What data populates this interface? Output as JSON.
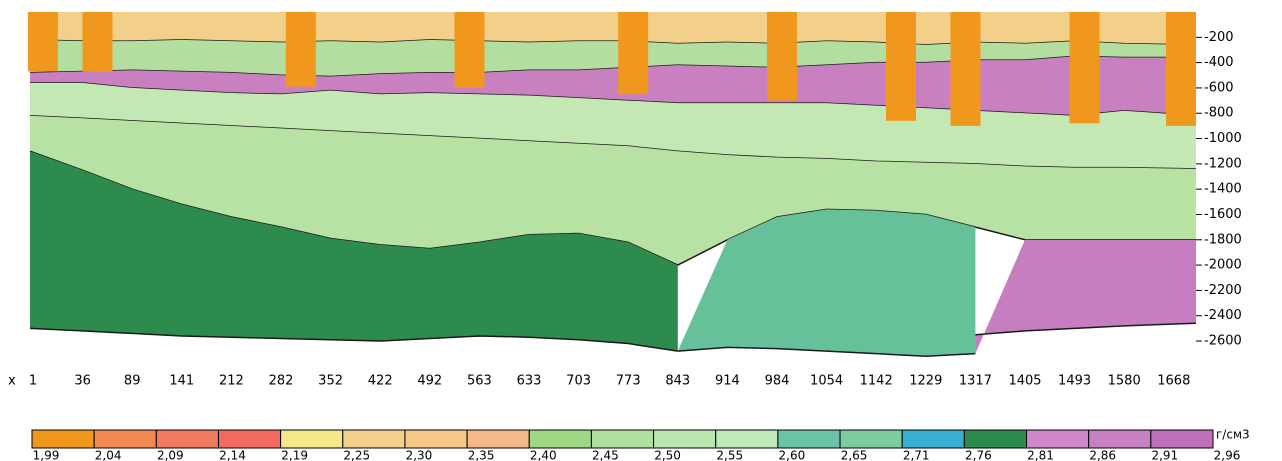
{
  "chart_data": {
    "type": "section",
    "x_label": "x",
    "categories": [
      "1",
      "36",
      "89",
      "141",
      "212",
      "282",
      "352",
      "422",
      "492",
      "563",
      "633",
      "703",
      "773",
      "843",
      "914",
      "984",
      "1054",
      "1142",
      "1229",
      "1317",
      "1405",
      "1493",
      "1580",
      "1668"
    ],
    "ylim": [
      0,
      -2750
    ],
    "yticks": [
      -200,
      -400,
      -600,
      -800,
      -1000,
      -1200,
      -1400,
      -1600,
      -1800,
      -2000,
      -2200,
      -2400,
      -2600
    ],
    "layers": [
      {
        "color": "#f3d08a",
        "bottom": [
          -220,
          -230,
          -230,
          -220,
          -230,
          -240,
          -230,
          -240,
          -220,
          -230,
          -240,
          -230,
          -230,
          -250,
          -240,
          -250,
          -230,
          -240,
          -260,
          -240,
          -250,
          -230,
          -250,
          -260
        ]
      },
      {
        "color": "#b4dea0",
        "bottom": [
          -480,
          -470,
          -460,
          -470,
          -480,
          -500,
          -510,
          -490,
          -480,
          -480,
          -460,
          -460,
          -440,
          -420,
          -430,
          -440,
          -420,
          -400,
          -400,
          -380,
          -380,
          -350,
          -360,
          -360
        ]
      },
      {
        "color": "#c880c0",
        "bottom": [
          -560,
          -560,
          -600,
          -620,
          -640,
          -650,
          -620,
          -650,
          -640,
          -650,
          -660,
          -680,
          -700,
          -720,
          -720,
          -720,
          -720,
          -740,
          -760,
          -780,
          -800,
          -820,
          -780,
          -820
        ]
      },
      {
        "color": "#c4e8b4",
        "bottom": [
          -820,
          -840,
          -860,
          -880,
          -900,
          -920,
          -940,
          -960,
          -980,
          -1000,
          -1020,
          -1040,
          -1060,
          -1100,
          -1130,
          -1150,
          -1160,
          -1180,
          -1190,
          -1200,
          -1220,
          -1230,
          -1230,
          -1240
        ]
      },
      {
        "color": "#b8e2a4",
        "bottom": [
          -1100,
          -1250,
          -1400,
          -1520,
          -1620,
          -1700,
          -1790,
          -1840,
          -1870,
          -1820,
          -1760,
          -1750,
          -1820,
          -2000,
          -1800,
          -1620,
          -1560,
          -1570,
          -1600,
          -1700,
          -1800,
          -1800,
          -1800,
          -1800
        ]
      },
      {
        "color": "#2e8b4e",
        "bottom": [
          -2500,
          -2520,
          -2540,
          -2560,
          -2570,
          -2580,
          -2590,
          -2600,
          -2580,
          -2560,
          -2570,
          -2590,
          -2620,
          -2680,
          null,
          null,
          null,
          null,
          null,
          null,
          null,
          null,
          null,
          null
        ]
      },
      {
        "color": "#66c09a",
        "bottom": [
          null,
          null,
          null,
          null,
          null,
          null,
          null,
          null,
          null,
          null,
          null,
          null,
          null,
          -2680,
          -2650,
          -2660,
          -2680,
          -2700,
          -2720,
          -2700,
          null,
          null,
          null,
          null
        ]
      },
      {
        "color": "#c77ec0",
        "bottom": [
          null,
          null,
          null,
          null,
          null,
          null,
          null,
          null,
          null,
          null,
          null,
          null,
          null,
          null,
          null,
          null,
          null,
          null,
          null,
          -2550,
          -2520,
          -2500,
          -2480,
          -2460
        ]
      }
    ],
    "wells": {
      "color": "#f0981e",
      "x": [
        0.2,
        1.3,
        5.4,
        8.8,
        12.1,
        15.1,
        17.5,
        18.8,
        21.2,
        23.3
      ],
      "depth": [
        -470,
        -470,
        -590,
        -600,
        -650,
        -700,
        -860,
        -900,
        -880,
        -900
      ]
    },
    "scale": {
      "unit": "г/см3",
      "colors": [
        "#f0981e",
        "#f08a50",
        "#f07a60",
        "#f06a60",
        "#f5e88a",
        "#f5d08a",
        "#f5c888",
        "#f5b888",
        "#9ed884",
        "#b0e0a0",
        "#bce6b0",
        "#c0e8b8",
        "#6cc4a8",
        "#7ccca0",
        "#3aaed0",
        "#2e8b4e",
        "#d088cc",
        "#c880c4",
        "#c070b8"
      ],
      "ticks": [
        {
          "value": 1.99,
          "label": "1,99"
        },
        {
          "value": 2.04,
          "label": "2,04"
        },
        {
          "value": 2.09,
          "label": "2,09"
        },
        {
          "value": 2.14,
          "label": "2,14"
        },
        {
          "value": 2.19,
          "label": "2,19"
        },
        {
          "value": 2.25,
          "label": "2,25"
        },
        {
          "value": 2.3,
          "label": "2,30"
        },
        {
          "value": 2.35,
          "label": "2,35"
        },
        {
          "value": 2.4,
          "label": "2,40"
        },
        {
          "value": 2.45,
          "label": "2,45"
        },
        {
          "value": 2.5,
          "label": "2,50"
        },
        {
          "value": 2.55,
          "label": "2,55"
        },
        {
          "value": 2.6,
          "label": "2,60"
        },
        {
          "value": 2.65,
          "label": "2,65"
        },
        {
          "value": 2.71,
          "label": "2,71"
        },
        {
          "value": 2.76,
          "label": "2,76"
        },
        {
          "value": 2.81,
          "label": "2,81"
        },
        {
          "value": 2.86,
          "label": "2,86"
        },
        {
          "value": 2.91,
          "label": "2,91"
        },
        {
          "value": 2.96,
          "label": "2,96"
        }
      ]
    }
  }
}
